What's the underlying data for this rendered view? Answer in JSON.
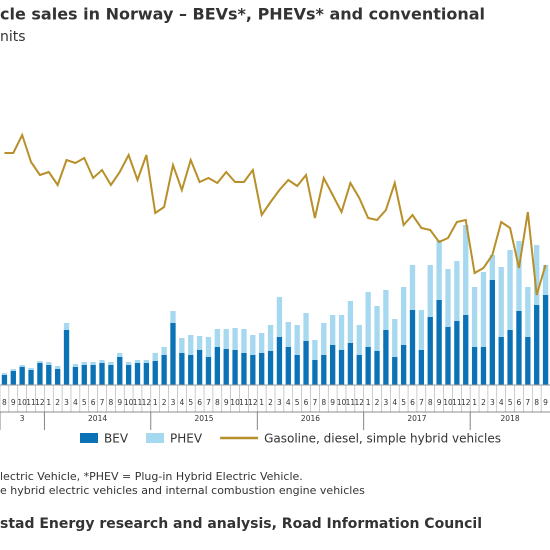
{
  "chart_data": {
    "type": "bar",
    "title": "cle sales in Norway – BEVs*, PHEVs* and conventional",
    "subtitle": "nits",
    "categories": [
      "8",
      "9",
      "10",
      "11",
      "12",
      "1",
      "2",
      "3",
      "4",
      "5",
      "6",
      "7",
      "8",
      "9",
      "10",
      "11",
      "12",
      "1",
      "2",
      "3",
      "4",
      "5",
      "6",
      "7",
      "8",
      "9",
      "10",
      "11",
      "12",
      "1",
      "2",
      "3",
      "4",
      "5",
      "6",
      "7",
      "8",
      "9",
      "10",
      "11",
      "12",
      "1",
      "2",
      "3",
      "4",
      "5",
      "6",
      "7",
      "8",
      "9",
      "10",
      "11",
      "12",
      "1",
      "2",
      "3",
      "4",
      "5",
      "6",
      "7",
      "8",
      "9"
    ],
    "year_labels": [
      "3",
      "2014",
      "2015",
      "2016",
      "2017",
      "2018"
    ],
    "ylim": [
      0,
      18000
    ],
    "series": [
      {
        "name": "BEV",
        "type": "bar",
        "color": "#0b72b5",
        "values": [
          500,
          700,
          900,
          750,
          1100,
          1000,
          800,
          2750,
          900,
          1000,
          1000,
          1100,
          1000,
          1400,
          1000,
          1100,
          1100,
          1200,
          1500,
          3100,
          1600,
          1500,
          1750,
          1400,
          1900,
          1800,
          1750,
          1600,
          1500,
          1600,
          1700,
          2400,
          1900,
          1500,
          2200,
          1250,
          1500,
          2000,
          1750,
          2100,
          1500,
          1900,
          1700,
          2750,
          1400,
          2000,
          3750,
          1750,
          3400,
          4250,
          2900,
          3200,
          3500,
          1900,
          1900,
          5250,
          2400,
          2750,
          3700,
          2400,
          4000,
          4500
        ]
      },
      {
        "name": "PHEV",
        "type": "bar",
        "color": "#a6d8f0",
        "values": [
          100,
          100,
          100,
          100,
          100,
          150,
          150,
          350,
          150,
          150,
          150,
          150,
          150,
          200,
          150,
          150,
          150,
          400,
          400,
          600,
          750,
          1000,
          700,
          1000,
          900,
          1000,
          1100,
          1200,
          1000,
          1000,
          1300,
          2000,
          1250,
          1500,
          1400,
          1000,
          1600,
          1500,
          1750,
          2100,
          1500,
          2750,
          2250,
          2000,
          1900,
          2900,
          2250,
          2000,
          2600,
          3000,
          2900,
          3000,
          4500,
          3000,
          3750,
          1250,
          3500,
          4000,
          3500,
          2500,
          3000,
          1500
        ]
      },
      {
        "name": "Gasoline, diesel, simple hybrid vehicles",
        "type": "line",
        "color": "#b8902a",
        "values": [
          11600,
          11600,
          12500,
          11150,
          10500,
          10650,
          10000,
          11250,
          11100,
          11350,
          10350,
          10750,
          10000,
          10650,
          11500,
          10250,
          11500,
          8600,
          8900,
          11000,
          9750,
          11250,
          10150,
          10350,
          10100,
          10650,
          10150,
          10150,
          10750,
          8500,
          9150,
          9750,
          10250,
          9950,
          10500,
          8350,
          10350,
          9500,
          8650,
          10100,
          9350,
          8350,
          8250,
          8750,
          10100,
          8000,
          8500,
          7850,
          7750,
          7150,
          7350,
          8150,
          8250,
          5600,
          5850,
          6500,
          8150,
          7850,
          5850,
          8650,
          4500,
          6000
        ]
      }
    ],
    "notes": [
      "lectric Vehicle, *PHEV = Plug-in Hybrid Electric Vehicle.",
      "e hybrid electric vehicles and internal combustion engine vehicles"
    ],
    "source": "stad Energy research and analysis, Road Information Council"
  }
}
